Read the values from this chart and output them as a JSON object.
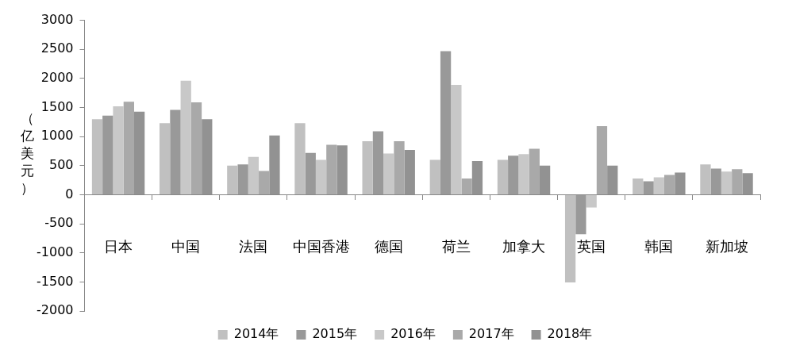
{
  "chart_data": {
    "type": "bar",
    "ylabel": "（亿美元）",
    "categories": [
      "日本",
      "中国",
      "法国",
      "中国香港",
      "德国",
      "荷兰",
      "加拿大",
      "英国",
      "韩国",
      "新加坡"
    ],
    "series": [
      {
        "name": "2014年",
        "color": "#c0c0c0",
        "values": [
          1300,
          1230,
          500,
          1230,
          920,
          600,
          600,
          -1510,
          280,
          520
        ]
      },
      {
        "name": "2015年",
        "color": "#999999",
        "values": [
          1360,
          1460,
          520,
          720,
          1090,
          2470,
          670,
          -680,
          230,
          450
        ]
      },
      {
        "name": "2016年",
        "color": "#c8c8c8",
        "values": [
          1520,
          1960,
          650,
          600,
          710,
          1890,
          700,
          -220,
          300,
          400
        ]
      },
      {
        "name": "2017年",
        "color": "#a9a9a9",
        "values": [
          1600,
          1590,
          410,
          860,
          920,
          280,
          790,
          1180,
          340,
          440
        ]
      },
      {
        "name": "2018年",
        "color": "#929292",
        "values": [
          1430,
          1300,
          1020,
          850,
          770,
          580,
          500,
          500,
          380,
          370
        ]
      }
    ],
    "ylim": [
      -2000,
      3000
    ],
    "yticks": [
      -2000,
      -1500,
      -1000,
      -500,
      0,
      500,
      1000,
      1500,
      2000,
      2500,
      3000
    ],
    "legend": "bottom"
  }
}
